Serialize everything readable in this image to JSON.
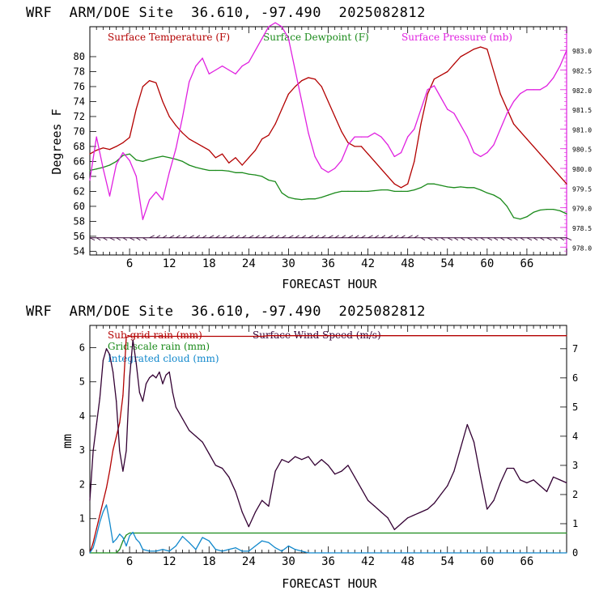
{
  "panels": [
    {
      "title": "WRF  ARM/DOE Site  36.610, -97.490  2025082812",
      "xlabel": "FORECAST HOUR",
      "ylabel": "Degrees F",
      "legend": [
        {
          "label": "Surface Temperature (F)",
          "color": "#b30000"
        },
        {
          "label": "Surface Dewpoint (F)",
          "color": "#1a8a1a"
        },
        {
          "label": "Surface Pressure (mb)",
          "color": "#e020e0"
        }
      ]
    },
    {
      "title": "WRF  ARM/DOE Site  36.610, -97.490  2025082812",
      "xlabel": "FORECAST HOUR",
      "ylabel": "mm",
      "legend": [
        {
          "label": "Sub-grid rain (mm)",
          "color": "#b30000"
        },
        {
          "label": "Surface Wind Speed (m/s)",
          "color": "#330033"
        },
        {
          "label": "Grid-scale rain (mm)",
          "color": "#1a8a1a"
        },
        {
          "label": "Integrated cloud (mm)",
          "color": "#1188cc"
        }
      ]
    }
  ],
  "chart_data": [
    {
      "type": "line",
      "title": "WRF  ARM/DOE Site  36.610, -97.490  2025082812",
      "xlabel": "FORECAST HOUR",
      "ylabel": "Degrees F",
      "xlim": [
        0,
        72
      ],
      "xticks": [
        6,
        12,
        18,
        24,
        30,
        36,
        42,
        48,
        54,
        60,
        66
      ],
      "ylim": [
        53.5,
        84
      ],
      "yticks": [
        54,
        56,
        58,
        60,
        62,
        64,
        66,
        68,
        70,
        72,
        74,
        76,
        78,
        80
      ],
      "y2lim": [
        977.8,
        983.6
      ],
      "y2ticks": [
        978.0,
        978.5,
        979.0,
        979.5,
        980.0,
        980.5,
        981.0,
        981.5,
        982.0,
        982.5,
        983.0
      ],
      "y2ticklabels": [
        "978.0",
        "978.5",
        "979.0",
        "979.5",
        "980.0",
        "980.5",
        "981.0",
        "981.5",
        "982.0",
        "982.5",
        "983.0"
      ],
      "series": [
        {
          "name": "Surface Temperature (F)",
          "axis": "left",
          "color": "#b30000",
          "x": [
            0,
            1,
            2,
            3,
            4,
            5,
            6,
            7,
            8,
            9,
            10,
            11,
            12,
            13,
            14,
            15,
            16,
            17,
            18,
            19,
            20,
            21,
            22,
            23,
            24,
            25,
            26,
            27,
            28,
            29,
            30,
            31,
            32,
            33,
            34,
            35,
            36,
            37,
            38,
            39,
            40,
            41,
            42,
            43,
            44,
            45,
            46,
            47,
            48,
            49,
            50,
            51,
            52,
            53,
            54,
            55,
            56,
            57,
            58,
            59,
            60,
            61,
            62,
            63,
            64,
            65,
            66,
            67,
            68,
            69,
            70,
            71,
            72
          ],
          "y": [
            67,
            67.5,
            67.8,
            67.6,
            68,
            68.5,
            69.2,
            73,
            76,
            76.8,
            76.5,
            74,
            72,
            70.8,
            69.8,
            69,
            68.5,
            68,
            67.5,
            66.5,
            67,
            65.8,
            66.5,
            65.5,
            66.5,
            67.5,
            69,
            69.5,
            71,
            73,
            75,
            76,
            76.8,
            77.2,
            77,
            76,
            74,
            72,
            70,
            68.5,
            68,
            68,
            67,
            66,
            65,
            64,
            63,
            62.5,
            63,
            66,
            71,
            75,
            77,
            77.5,
            78,
            79,
            80,
            80.5,
            81,
            81.3,
            81,
            78,
            75,
            73,
            71,
            70,
            69,
            68,
            67,
            66,
            65,
            64,
            63
          ]
        },
        {
          "name": "Surface Dewpoint (F)",
          "axis": "left",
          "color": "#1a8a1a",
          "x": [
            0,
            1,
            2,
            3,
            4,
            5,
            6,
            7,
            8,
            9,
            10,
            11,
            12,
            13,
            14,
            15,
            16,
            17,
            18,
            19,
            20,
            21,
            22,
            23,
            24,
            25,
            26,
            27,
            28,
            29,
            30,
            31,
            32,
            33,
            34,
            35,
            36,
            37,
            38,
            39,
            40,
            41,
            42,
            43,
            44,
            45,
            46,
            47,
            48,
            49,
            50,
            51,
            52,
            53,
            54,
            55,
            56,
            57,
            58,
            59,
            60,
            61,
            62,
            63,
            64,
            65,
            66,
            67,
            68,
            69,
            70,
            71,
            72
          ],
          "y": [
            64.8,
            65,
            65.2,
            65.5,
            66,
            66.8,
            67,
            66.2,
            66,
            66.3,
            66.5,
            66.7,
            66.5,
            66.3,
            66,
            65.5,
            65.2,
            65,
            64.8,
            64.8,
            64.8,
            64.7,
            64.5,
            64.5,
            64.3,
            64.2,
            64,
            63.5,
            63.3,
            61.8,
            61.2,
            61,
            60.9,
            61,
            61,
            61.2,
            61.5,
            61.8,
            62,
            62,
            62,
            62,
            62,
            62.1,
            62.2,
            62.2,
            62,
            62,
            62,
            62.2,
            62.5,
            63,
            63,
            62.8,
            62.6,
            62.5,
            62.6,
            62.5,
            62.5,
            62.2,
            61.8,
            61.5,
            61,
            60,
            58.5,
            58.3,
            58.6,
            59.2,
            59.5,
            59.6,
            59.6,
            59.4,
            59
          ]
        },
        {
          "name": "Surface Pressure (mb)",
          "axis": "right",
          "color": "#e020e0",
          "x": [
            0,
            1,
            2,
            3,
            4,
            5,
            6,
            7,
            8,
            9,
            10,
            11,
            12,
            13,
            14,
            15,
            16,
            17,
            18,
            19,
            20,
            21,
            22,
            23,
            24,
            25,
            26,
            27,
            28,
            29,
            30,
            31,
            32,
            33,
            34,
            35,
            36,
            37,
            38,
            39,
            40,
            41,
            42,
            43,
            44,
            45,
            46,
            47,
            48,
            49,
            50,
            51,
            52,
            53,
            54,
            55,
            56,
            57,
            58,
            59,
            60,
            61,
            62,
            63,
            64,
            65,
            66,
            67,
            68,
            69,
            70,
            71,
            72
          ],
          "y": [
            979.7,
            980.8,
            980,
            979.3,
            980.1,
            980.4,
            980.2,
            979.8,
            978.7,
            979.2,
            979.4,
            979.2,
            979.9,
            980.5,
            981.3,
            982.2,
            982.6,
            982.8,
            982.4,
            982.5,
            982.6,
            982.5,
            982.4,
            982.6,
            982.7,
            983,
            983.3,
            983.6,
            983.7,
            983.6,
            983.3,
            982.5,
            981.7,
            980.9,
            980.3,
            980,
            979.9,
            980,
            980.2,
            980.6,
            980.8,
            980.8,
            980.8,
            980.9,
            980.8,
            980.6,
            980.3,
            980.4,
            980.8,
            981,
            981.5,
            982,
            982.1,
            981.8,
            981.5,
            981.4,
            981.1,
            980.8,
            980.4,
            980.3,
            980.4,
            980.6,
            981,
            981.4,
            981.7,
            981.9,
            982,
            982,
            982,
            982.1,
            982.3,
            982.6,
            983
          ]
        },
        {
          "name": "",
          "axis": "left",
          "role": "wind-barbs",
          "color": "#330033",
          "x": [
            0,
            72
          ],
          "y": [
            55.8,
            55.8
          ]
        }
      ]
    },
    {
      "type": "line",
      "title": "WRF  ARM/DOE Site  36.610, -97.490  2025082812",
      "xlabel": "FORECAST HOUR",
      "ylabel": "mm",
      "xlim": [
        0,
        72
      ],
      "xticks": [
        6,
        12,
        18,
        24,
        30,
        36,
        42,
        48,
        54,
        60,
        66
      ],
      "ylim": [
        0,
        6.65
      ],
      "yticks": [
        0,
        1,
        2,
        3,
        4,
        5,
        6
      ],
      "y2lim": [
        0,
        7.8
      ],
      "y2ticks": [
        0,
        1,
        2,
        3,
        4,
        5,
        6,
        7
      ],
      "series": [
        {
          "name": "Sub-grid rain (mm)",
          "axis": "left",
          "color": "#b30000",
          "x": [
            0,
            0.5,
            1,
            1.5,
            2,
            2.5,
            3,
            3.5,
            4,
            4.5,
            5,
            5.5,
            6,
            6.5,
            7,
            26,
            27,
            72
          ],
          "y": [
            0,
            0.3,
            0.7,
            1.1,
            1.5,
            1.9,
            2.4,
            3.0,
            3.4,
            3.8,
            4.6,
            6.3,
            6.33,
            6.33,
            6.33,
            6.33,
            6.35,
            6.35
          ]
        },
        {
          "name": "Surface Wind Speed (m/s)",
          "axis": "right",
          "color": "#330033",
          "x": [
            0,
            0.5,
            1,
            1.5,
            2,
            2.5,
            3,
            3.5,
            4,
            4.5,
            5,
            5.5,
            6,
            6.5,
            7,
            7.5,
            8,
            8.5,
            9,
            9.5,
            10,
            10.5,
            11,
            11.5,
            12,
            12.5,
            13,
            14,
            15,
            16,
            17,
            18,
            19,
            20,
            21,
            22,
            23,
            24,
            25,
            26,
            27,
            28,
            29,
            30,
            31,
            32,
            33,
            34,
            35,
            36,
            37,
            38,
            39,
            40,
            41,
            42,
            43,
            44,
            45,
            46,
            47,
            48,
            49,
            50,
            51,
            52,
            53,
            54,
            55,
            56,
            57,
            58,
            59,
            60,
            61,
            62,
            63,
            64,
            65,
            66,
            67,
            68,
            69,
            70,
            71,
            72
          ],
          "y": [
            1.8,
            3.5,
            4.4,
            5.3,
            6.6,
            7,
            6.8,
            6.2,
            5.2,
            3.5,
            2.8,
            3.5,
            6.0,
            7.3,
            6.5,
            5.5,
            5.2,
            5.8,
            6.0,
            6.1,
            6.0,
            6.2,
            5.8,
            6.1,
            6.2,
            5.5,
            5.0,
            4.6,
            4.2,
            4.0,
            3.8,
            3.4,
            3.0,
            2.9,
            2.6,
            2.1,
            1.4,
            0.9,
            1.4,
            1.8,
            1.6,
            2.8,
            3.2,
            3.1,
            3.3,
            3.2,
            3.3,
            3.0,
            3.2,
            3.0,
            2.7,
            2.8,
            3.0,
            2.6,
            2.2,
            1.8,
            1.6,
            1.4,
            1.2,
            0.8,
            1.0,
            1.2,
            1.3,
            1.4,
            1.5,
            1.7,
            2.0,
            2.3,
            2.8,
            3.6,
            4.4,
            3.8,
            2.6,
            1.5,
            1.8,
            2.4,
            2.9,
            2.9,
            2.5,
            2.4,
            2.5,
            2.3,
            2.1,
            2.6,
            2.5,
            2.4
          ]
        },
        {
          "name": "Grid-scale rain (mm)",
          "axis": "left",
          "color": "#1a8a1a",
          "x": [
            0,
            4,
            4.5,
            5,
            5.5,
            6,
            72
          ],
          "y": [
            0,
            0,
            0.1,
            0.35,
            0.52,
            0.58,
            0.58
          ]
        },
        {
          "name": "Integrated cloud (mm)",
          "axis": "left",
          "color": "#1188cc",
          "x": [
            0,
            0.5,
            1,
            1.5,
            2,
            2.5,
            3,
            3.5,
            4,
            4.5,
            5,
            5.5,
            6,
            6.5,
            7,
            7.5,
            8,
            9,
            10,
            11,
            12,
            13,
            14,
            15,
            16,
            17,
            18,
            19,
            20,
            21,
            22,
            23,
            24,
            25,
            26,
            27,
            28,
            29,
            30,
            31,
            32,
            33,
            72
          ],
          "y": [
            0,
            0.15,
            0.5,
            0.9,
            1.2,
            1.4,
            0.9,
            0.3,
            0.4,
            0.55,
            0.45,
            0.2,
            0.5,
            0.6,
            0.4,
            0.3,
            0.1,
            0.05,
            0.05,
            0.1,
            0.05,
            0.2,
            0.48,
            0.3,
            0.1,
            0.45,
            0.35,
            0.1,
            0.05,
            0.1,
            0.15,
            0.05,
            0.05,
            0.2,
            0.35,
            0.3,
            0.15,
            0.05,
            0.2,
            0.1,
            0.05,
            0,
            0
          ]
        }
      ]
    }
  ]
}
